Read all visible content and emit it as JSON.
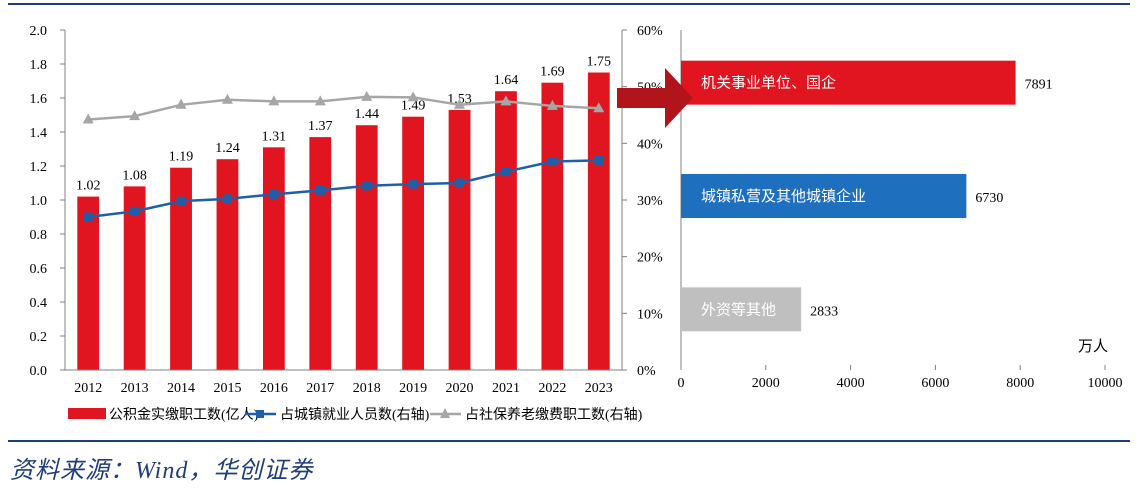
{
  "source": "资料来源：Wind，华创证券",
  "chart_data": [
    {
      "type": "bar",
      "categories": [
        "2012",
        "2013",
        "2014",
        "2015",
        "2016",
        "2017",
        "2018",
        "2019",
        "2020",
        "2021",
        "2022",
        "2023"
      ],
      "series": [
        {
          "name": "公积金实缴职工数(亿人)",
          "type": "bar",
          "axis": "left",
          "color": "#e0151f",
          "values": [
            1.02,
            1.08,
            1.19,
            1.24,
            1.31,
            1.37,
            1.44,
            1.49,
            1.53,
            1.64,
            1.69,
            1.75
          ],
          "labels": [
            "1.02",
            "1.08",
            "1.19",
            "1.24",
            "1.31",
            "1.37",
            "1.44",
            "1.49",
            "1.53",
            "1.64",
            "1.69",
            "1.75"
          ]
        },
        {
          "name": "占城镇就业人员数(右轴)",
          "type": "line",
          "axis": "right",
          "color": "#1f5fa8",
          "marker": "square",
          "values": [
            27.0,
            28.0,
            29.8,
            30.2,
            31.0,
            31.7,
            32.5,
            32.8,
            33.0,
            35.0,
            36.8,
            37.0
          ]
        },
        {
          "name": "占社保养老缴费职工数(右轴)",
          "type": "line",
          "axis": "right",
          "color": "#a6a6a6",
          "marker": "triangle",
          "values": [
            44.2,
            44.8,
            46.8,
            47.7,
            47.4,
            47.4,
            48.2,
            48.1,
            46.8,
            47.4,
            46.6,
            46.2
          ]
        }
      ],
      "ylim": [
        0,
        2.0
      ],
      "yticks": [
        "0.0",
        "0.2",
        "0.4",
        "0.6",
        "0.8",
        "1.0",
        "1.2",
        "1.4",
        "1.6",
        "1.8",
        "2.0"
      ],
      "y2lim": [
        0,
        60
      ],
      "y2ticks": [
        "0%",
        "10%",
        "20%",
        "30%",
        "40%",
        "50%",
        "60%"
      ],
      "legend_position": "bottom"
    },
    {
      "type": "bar",
      "orientation": "horizontal",
      "categories": [
        "机关事业单位、国企",
        "城镇私营及其他城镇企业",
        "外资等其他"
      ],
      "values": [
        7891,
        6730,
        2833
      ],
      "labels": [
        "7891",
        "6730",
        "2833"
      ],
      "colors": [
        "#e0151f",
        "#1f6fbf",
        "#bfbfbf"
      ],
      "xlim": [
        0,
        10000
      ],
      "xticks": [
        "0",
        "2000",
        "4000",
        "6000",
        "8000",
        "10000"
      ],
      "unit": "万人"
    }
  ],
  "arrow_color": "#b2141c"
}
